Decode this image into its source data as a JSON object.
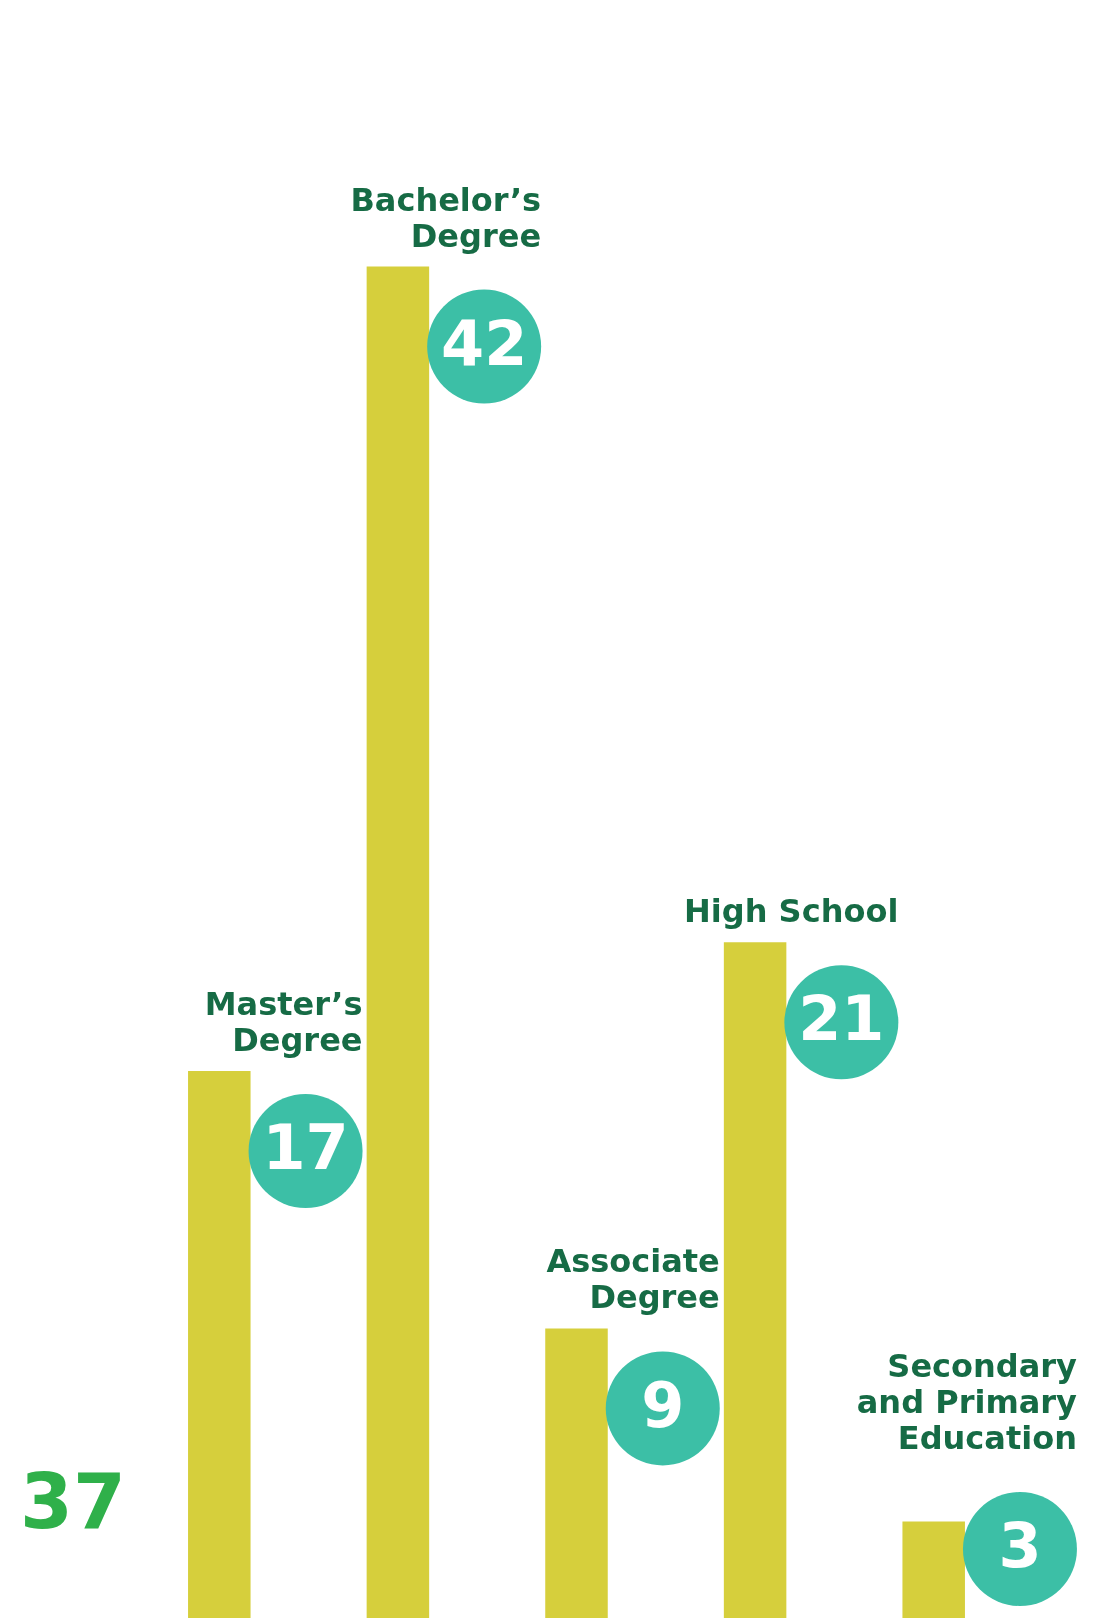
{
  "chart_data": {
    "type": "bar",
    "categories": [
      "Master’s Degree",
      "Bachelor’s Degree",
      "Associate Degree",
      "High School",
      "Secondary and Primary Education"
    ],
    "values": [
      17,
      42,
      9,
      21,
      3
    ],
    "color": "#d6cf3c",
    "data_labels": true,
    "legend": false,
    "annotations": [
      "37"
    ]
  }
}
